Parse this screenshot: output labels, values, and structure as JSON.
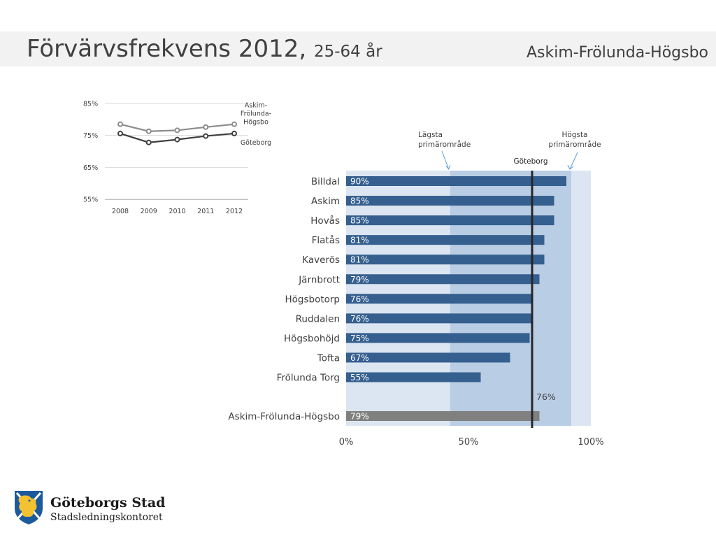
{
  "slide": {
    "title_main": "Förvärvsfrekvens 2012,",
    "title_sub": "25-64 år",
    "district": "Askim-Frölunda-Högsbo"
  },
  "logo": {
    "org": "Göteborgs Stad",
    "department": "Stadsledningskontoret"
  },
  "chart_data": [
    {
      "type": "line",
      "x": [
        "2008",
        "2009",
        "2010",
        "2011",
        "2012"
      ],
      "y_ticks": [
        "85%",
        "75%",
        "65%",
        "55%"
      ],
      "ylim": [
        55,
        85
      ],
      "grid": true,
      "series": [
        {
          "name": "Askim-Frölunda-Högsbo",
          "label_lines": [
            "Askim-",
            "Frölunda-",
            "Högsbo"
          ],
          "values": [
            78.5,
            76.3,
            76.6,
            77.6,
            78.5
          ],
          "color": "#8c8c8c"
        },
        {
          "name": "Göteborg",
          "label_lines": [
            "Göteborg"
          ],
          "values": [
            75.6,
            72.8,
            73.7,
            74.8,
            75.6
          ],
          "color": "#3f3f3f"
        }
      ]
    },
    {
      "type": "bar",
      "orientation": "horizontal",
      "categories": [
        "Billdal",
        "Askim",
        "Hovås",
        "Flatås",
        "Kaverös",
        "Järnbrott",
        "Högsbotorp",
        "Ruddalen",
        "Högsbohöjd",
        "Tofta",
        "Frölunda Torg"
      ],
      "values": [
        90,
        85,
        85,
        81,
        81,
        79,
        76,
        76,
        75,
        67,
        55
      ],
      "value_labels": [
        "90%",
        "85%",
        "85%",
        "81%",
        "81%",
        "79%",
        "76%",
        "76%",
        "75%",
        "67%",
        "55%"
      ],
      "bar_color": "#355f8e",
      "total": {
        "category": "Askim-Frölunda-Högsbo",
        "value": 79,
        "value_label": "79%",
        "color": "#808080"
      },
      "x_ticks": [
        "0%",
        "50%",
        "100%"
      ],
      "xlim": [
        0,
        100
      ],
      "reference_line": {
        "label": "Göteborg",
        "value": 76,
        "value_label": "76%"
      },
      "range_band": {
        "min": 42.5,
        "max": 92,
        "min_label_lines": [
          "Lägsta",
          "primärområde"
        ],
        "max_label_lines": [
          "Högsta",
          "primärområde"
        ]
      },
      "colors": {
        "outer_band": "#dce6f2",
        "inner_band": "#b9cde5"
      }
    }
  ]
}
